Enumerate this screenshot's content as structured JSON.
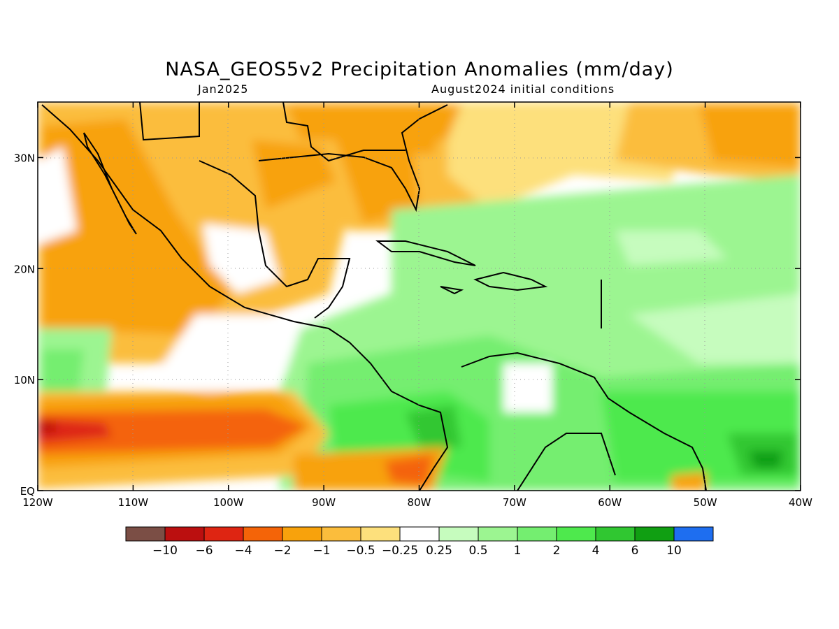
{
  "title": "NASA_GEOS5v2 Precipitation Anomalies (mm/day)",
  "valid_month": "Jan2025",
  "init_conditions": "August2024 initial conditions",
  "map": {
    "lon_range": [
      -120,
      -40
    ],
    "lat_range": [
      0,
      35
    ],
    "x_ticks": [
      "120W",
      "110W",
      "100W",
      "90W",
      "80W",
      "70W",
      "60W",
      "50W",
      "40W"
    ],
    "y_ticks": [
      "EQ",
      "10N",
      "20N",
      "30N"
    ],
    "grid": "dotted"
  },
  "colorbar": {
    "colors": [
      "#7b4e45",
      "#bb0f0f",
      "#de2512",
      "#f46408",
      "#f8a20c",
      "#fbbd3c",
      "#fde07c",
      "#ffffff",
      "#c6fcbe",
      "#9cf591",
      "#74ee70",
      "#4ee94d",
      "#30c731",
      "#109f12",
      "#1e6ef0"
    ],
    "labels": [
      "−10",
      "−6",
      "−4",
      "−2",
      "−1",
      "−0.5",
      "−0.25",
      "0.25",
      "0.5",
      "1",
      "2",
      "4",
      "6",
      "10"
    ]
  }
}
